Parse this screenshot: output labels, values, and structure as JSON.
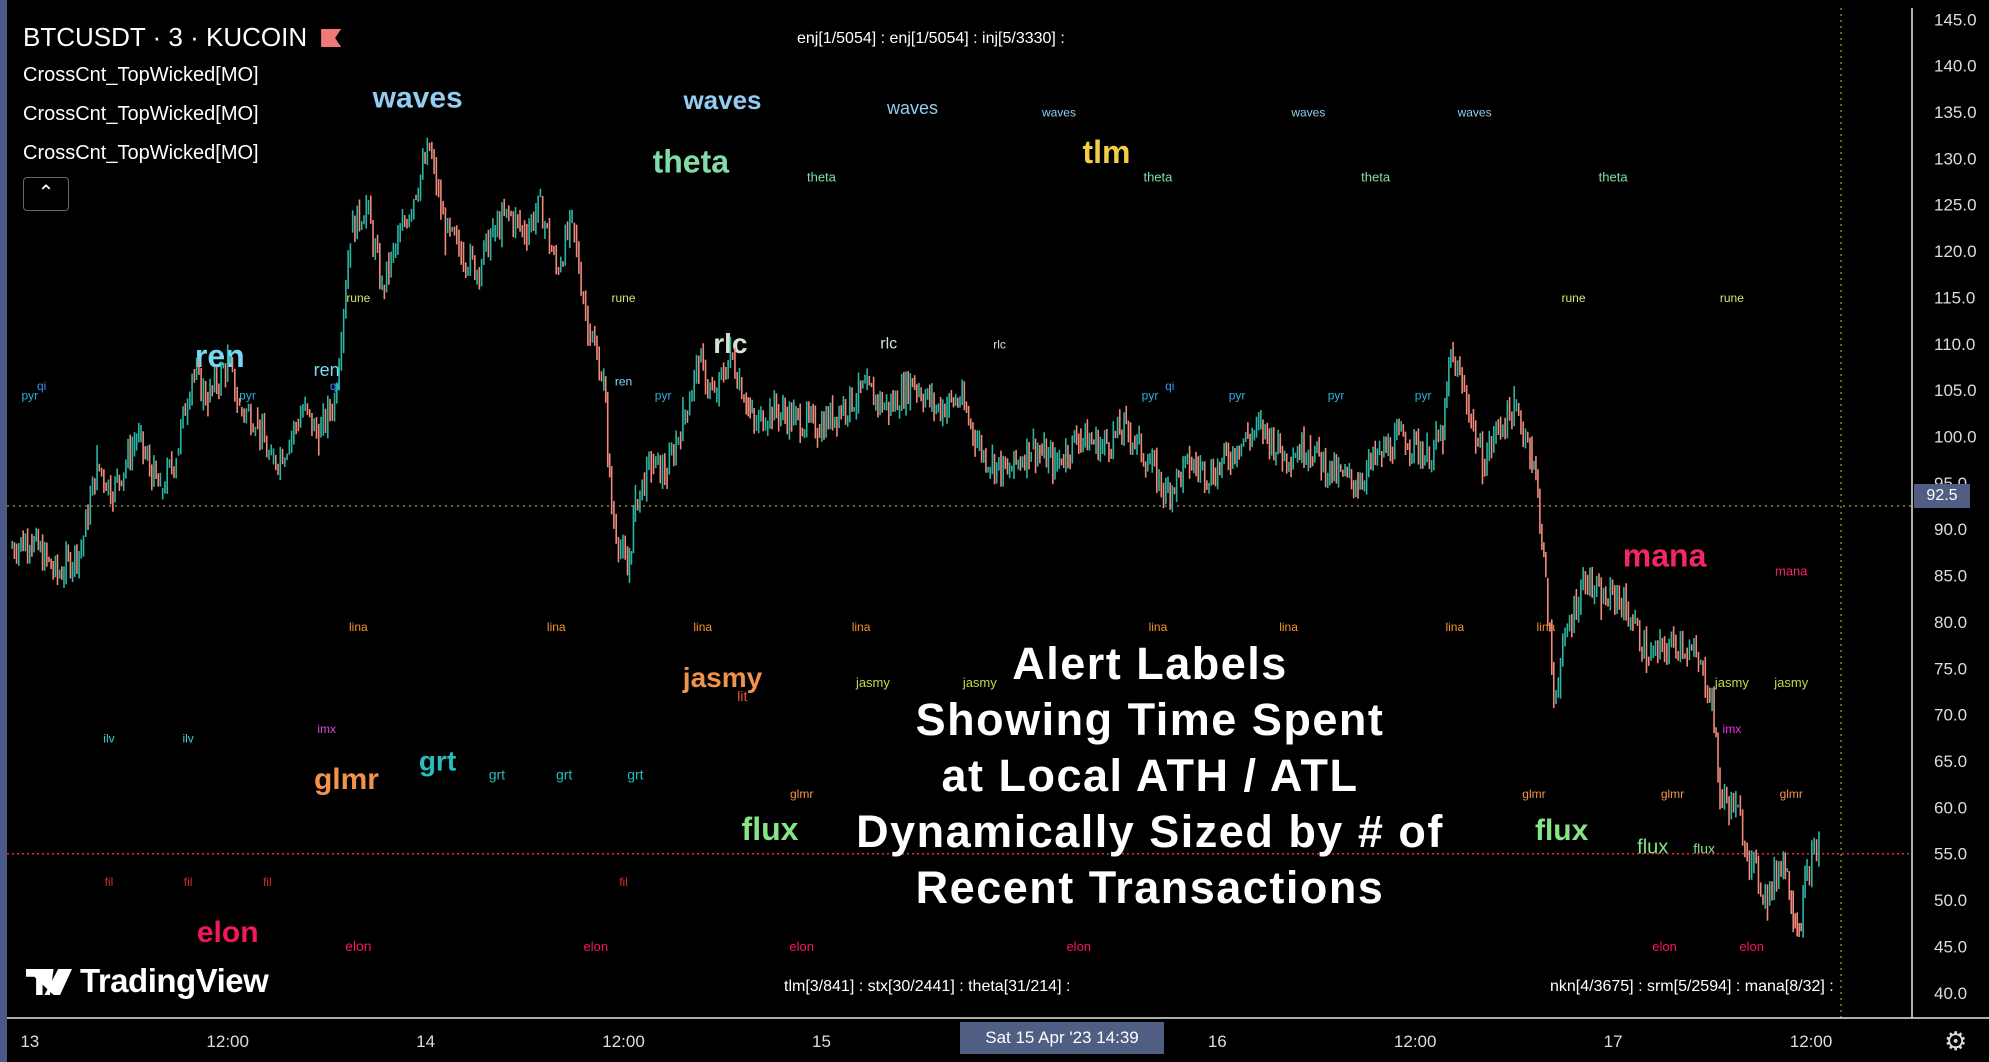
{
  "header": {
    "symbol": "BTCUSDT · 3 · KUCOIN",
    "indicators": [
      "CrossCnt_TopWicked[MO]",
      "CrossCnt_TopWicked[MO]",
      "CrossCnt_TopWicked[MO]"
    ],
    "collapse_icon": "chevron-up-icon",
    "top_status": "enj[1/5054] : enj[1/5054] : inj[5/3330] :",
    "bottom_status_left": "tlm[3/841] : stx[30/2441] : theta[31/214] :",
    "bottom_status_right": "nkn[4/3675] : srm[5/2594] : mana[8/32] :"
  },
  "brand": {
    "logo_text": "TradingView",
    "logo_icon": "tradingview-logo-icon"
  },
  "headline": [
    "Alert Labels",
    "Showing Time Spent",
    "at Local ATH / ATL",
    "Dynamically Sized by # of",
    "Recent Transactions"
  ],
  "crosshair": {
    "time_label": "Sat 15 Apr '23   14:39",
    "price_label": "92.5",
    "price": 92.5,
    "time": 13.6
  },
  "settings_icon": "gear-icon",
  "colors": {
    "bg": "#000000",
    "border": "#4a5a86",
    "up": "#2ab5a3",
    "down": "#f08a7a",
    "redline": "#e0302a"
  },
  "chart_data": {
    "type": "candlestick",
    "x_ticks": [
      {
        "label": "13",
        "x": 0.05
      },
      {
        "label": "12:00",
        "x": 0.55
      },
      {
        "label": "14",
        "x": 1.05
      },
      {
        "label": "12:00",
        "x": 1.55
      },
      {
        "label": "15",
        "x": 2.05
      },
      {
        "label": "16",
        "x": 3.05
      },
      {
        "label": "12:00",
        "x": 3.55
      },
      {
        "label": "17",
        "x": 4.05
      },
      {
        "label": "12:00",
        "x": 4.55
      }
    ],
    "y_ticks": [
      40,
      45,
      50,
      55,
      60,
      65,
      70,
      75,
      80,
      85,
      90,
      95,
      100,
      105,
      110,
      115,
      120,
      125,
      130,
      135,
      140,
      145
    ],
    "ylim": [
      37.5,
      146
    ],
    "xlim": [
      0,
      4.8
    ],
    "red_price_line": 55.0,
    "price_path": [
      [
        0.0,
        88
      ],
      [
        0.05,
        89
      ],
      [
        0.12,
        85
      ],
      [
        0.18,
        88
      ],
      [
        0.22,
        97
      ],
      [
        0.26,
        94
      ],
      [
        0.32,
        100
      ],
      [
        0.38,
        94
      ],
      [
        0.42,
        98
      ],
      [
        0.46,
        107
      ],
      [
        0.5,
        104
      ],
      [
        0.55,
        108
      ],
      [
        0.58,
        103
      ],
      [
        0.62,
        102
      ],
      [
        0.66,
        97
      ],
      [
        0.7,
        99
      ],
      [
        0.74,
        103
      ],
      [
        0.78,
        100
      ],
      [
        0.82,
        104
      ],
      [
        0.86,
        122
      ],
      [
        0.9,
        125
      ],
      [
        0.94,
        116
      ],
      [
        0.98,
        121
      ],
      [
        1.02,
        126
      ],
      [
        1.06,
        131
      ],
      [
        1.1,
        122
      ],
      [
        1.14,
        120
      ],
      [
        1.18,
        118
      ],
      [
        1.22,
        122
      ],
      [
        1.26,
        124
      ],
      [
        1.3,
        122
      ],
      [
        1.34,
        125
      ],
      [
        1.38,
        118
      ],
      [
        1.42,
        123
      ],
      [
        1.46,
        112
      ],
      [
        1.5,
        106
      ],
      [
        1.52,
        92
      ],
      [
        1.56,
        85
      ],
      [
        1.58,
        93
      ],
      [
        1.62,
        97
      ],
      [
        1.66,
        96
      ],
      [
        1.7,
        102
      ],
      [
        1.74,
        108
      ],
      [
        1.78,
        104
      ],
      [
        1.82,
        109
      ],
      [
        1.86,
        104
      ],
      [
        1.88,
        101
      ],
      [
        1.92,
        103
      ],
      [
        1.98,
        102
      ],
      [
        2.04,
        101
      ],
      [
        2.1,
        103
      ],
      [
        2.16,
        105
      ],
      [
        2.22,
        103
      ],
      [
        2.28,
        106
      ],
      [
        2.34,
        103
      ],
      [
        2.4,
        104
      ],
      [
        2.46,
        98
      ],
      [
        2.52,
        96
      ],
      [
        2.58,
        99
      ],
      [
        2.64,
        97
      ],
      [
        2.7,
        100
      ],
      [
        2.76,
        99
      ],
      [
        2.82,
        101
      ],
      [
        2.88,
        97
      ],
      [
        2.92,
        94
      ],
      [
        2.98,
        97
      ],
      [
        3.04,
        96
      ],
      [
        3.1,
        99
      ],
      [
        3.16,
        101
      ],
      [
        3.22,
        98
      ],
      [
        3.28,
        99
      ],
      [
        3.34,
        96
      ],
      [
        3.4,
        95
      ],
      [
        3.46,
        98
      ],
      [
        3.52,
        100
      ],
      [
        3.58,
        98
      ],
      [
        3.62,
        100
      ],
      [
        3.64,
        109
      ],
      [
        3.68,
        104
      ],
      [
        3.72,
        97
      ],
      [
        3.76,
        101
      ],
      [
        3.8,
        103
      ],
      [
        3.84,
        99
      ],
      [
        3.86,
        94
      ],
      [
        3.88,
        84
      ],
      [
        3.9,
        72
      ],
      [
        3.94,
        80
      ],
      [
        3.98,
        85
      ],
      [
        4.02,
        82
      ],
      [
        4.06,
        83
      ],
      [
        4.1,
        80
      ],
      [
        4.14,
        76
      ],
      [
        4.18,
        77
      ],
      [
        4.22,
        78
      ],
      [
        4.26,
        76
      ],
      [
        4.3,
        72
      ],
      [
        4.32,
        61
      ],
      [
        4.36,
        60
      ],
      [
        4.4,
        54
      ],
      [
        4.44,
        50
      ],
      [
        4.48,
        55
      ],
      [
        4.5,
        50
      ],
      [
        4.52,
        47
      ],
      [
        4.54,
        53
      ],
      [
        4.57,
        56
      ]
    ],
    "labels": [
      {
        "text": "waves",
        "x": 1.03,
        "y": 135.5,
        "size": 30,
        "color": "#9ad8ff"
      },
      {
        "text": "waves",
        "x": 1.8,
        "y": 135.3,
        "size": 26,
        "color": "#9ad8ff"
      },
      {
        "text": "waves",
        "x": 2.28,
        "y": 134.8,
        "size": 18,
        "color": "#9ad8ff"
      },
      {
        "text": "waves",
        "x": 2.65,
        "y": 134.5,
        "size": 12,
        "color": "#9ad8ff"
      },
      {
        "text": "waves",
        "x": 3.28,
        "y": 134.5,
        "size": 12,
        "color": "#9ad8ff"
      },
      {
        "text": "waves",
        "x": 3.7,
        "y": 134.5,
        "size": 12,
        "color": "#9ad8ff"
      },
      {
        "text": "theta",
        "x": 1.72,
        "y": 128.5,
        "size": 32,
        "color": "#8ae8b0"
      },
      {
        "text": "theta",
        "x": 2.05,
        "y": 127.5,
        "size": 13,
        "color": "#8ae8b0"
      },
      {
        "text": "theta",
        "x": 2.9,
        "y": 127.5,
        "size": 13,
        "color": "#8ae8b0"
      },
      {
        "text": "theta",
        "x": 3.45,
        "y": 127.5,
        "size": 13,
        "color": "#8ae8b0"
      },
      {
        "text": "theta",
        "x": 4.05,
        "y": 127.5,
        "size": 13,
        "color": "#8ae8b0"
      },
      {
        "text": "tlm",
        "x": 2.77,
        "y": 129.5,
        "size": 32,
        "color": "#ffd84a"
      },
      {
        "text": "rune",
        "x": 0.88,
        "y": 114.5,
        "size": 12,
        "color": "#e8ee7a"
      },
      {
        "text": "rune",
        "x": 1.55,
        "y": 114.5,
        "size": 12,
        "color": "#e8ee7a"
      },
      {
        "text": "rune",
        "x": 3.95,
        "y": 114.5,
        "size": 12,
        "color": "#e8ee7a"
      },
      {
        "text": "rune",
        "x": 4.35,
        "y": 114.5,
        "size": 12,
        "color": "#e8ee7a"
      },
      {
        "text": "ren",
        "x": 0.53,
        "y": 107.5,
        "size": 32,
        "color": "#7fe6ff"
      },
      {
        "text": "ren",
        "x": 0.8,
        "y": 106.5,
        "size": 18,
        "color": "#7fe6ff"
      },
      {
        "text": "ren",
        "x": 1.55,
        "y": 105.5,
        "size": 12,
        "color": "#7fe6ff"
      },
      {
        "text": "rlc",
        "x": 1.82,
        "y": 109,
        "size": 28,
        "color": "#e0f0e0"
      },
      {
        "text": "rlc",
        "x": 2.22,
        "y": 109.5,
        "size": 16,
        "color": "#e0f0e0"
      },
      {
        "text": "rlc",
        "x": 2.5,
        "y": 109.5,
        "size": 12,
        "color": "#e0f0e0"
      },
      {
        "text": "pyr",
        "x": 0.05,
        "y": 104,
        "size": 12,
        "color": "#32b8f0"
      },
      {
        "text": "pyr",
        "x": 0.6,
        "y": 104,
        "size": 12,
        "color": "#32b8f0"
      },
      {
        "text": "pyr",
        "x": 1.65,
        "y": 104,
        "size": 12,
        "color": "#32b8f0"
      },
      {
        "text": "pyr",
        "x": 2.88,
        "y": 104,
        "size": 12,
        "color": "#32b8f0"
      },
      {
        "text": "pyr",
        "x": 3.1,
        "y": 104,
        "size": 12,
        "color": "#32b8f0"
      },
      {
        "text": "pyr",
        "x": 3.35,
        "y": 104,
        "size": 12,
        "color": "#32b8f0"
      },
      {
        "text": "pyr",
        "x": 3.57,
        "y": 104,
        "size": 12,
        "color": "#32b8f0"
      },
      {
        "text": "qi",
        "x": 0.08,
        "y": 105,
        "size": 12,
        "color": "#32a0ff"
      },
      {
        "text": "qi",
        "x": 2.93,
        "y": 105,
        "size": 12,
        "color": "#32a0ff"
      },
      {
        "text": "qi",
        "x": 0.82,
        "y": 105,
        "size": 12,
        "color": "#32a0ff"
      },
      {
        "text": "mana",
        "x": 4.18,
        "y": 86,
        "size": 32,
        "color": "#ff2a6a"
      },
      {
        "text": "mana",
        "x": 4.5,
        "y": 85,
        "size": 13,
        "color": "#ff2a6a"
      },
      {
        "text": "lina",
        "x": 0.88,
        "y": 79,
        "size": 12,
        "color": "#ff9a30"
      },
      {
        "text": "lina",
        "x": 1.38,
        "y": 79,
        "size": 12,
        "color": "#ff9a30"
      },
      {
        "text": "lina",
        "x": 1.75,
        "y": 79,
        "size": 12,
        "color": "#ff9a30"
      },
      {
        "text": "lina",
        "x": 2.15,
        "y": 79,
        "size": 12,
        "color": "#ff9a30"
      },
      {
        "text": "lina",
        "x": 2.9,
        "y": 79,
        "size": 12,
        "color": "#ff9a30"
      },
      {
        "text": "lina",
        "x": 3.23,
        "y": 79,
        "size": 12,
        "color": "#ff9a30"
      },
      {
        "text": "lina",
        "x": 3.65,
        "y": 79,
        "size": 12,
        "color": "#ff9a30"
      },
      {
        "text": "lina",
        "x": 3.88,
        "y": 79,
        "size": 12,
        "color": "#ff9a30"
      },
      {
        "text": "jasmy",
        "x": 1.8,
        "y": 73,
        "size": 28,
        "color": "#ff9a52"
      },
      {
        "text": "jasmy",
        "x": 2.18,
        "y": 73,
        "size": 13,
        "color": "#c8e64a"
      },
      {
        "text": "jasmy",
        "x": 2.45,
        "y": 73,
        "size": 13,
        "color": "#c8e64a"
      },
      {
        "text": "jasmy",
        "x": 4.35,
        "y": 73,
        "size": 13,
        "color": "#c8e64a"
      },
      {
        "text": "jasmy",
        "x": 4.5,
        "y": 73,
        "size": 13,
        "color": "#c8e64a"
      },
      {
        "text": "lit",
        "x": 1.85,
        "y": 71.5,
        "size": 14,
        "color": "#ff5a40"
      },
      {
        "text": "ilv",
        "x": 0.25,
        "y": 67,
        "size": 12,
        "color": "#4ad8e8"
      },
      {
        "text": "ilv",
        "x": 0.45,
        "y": 67,
        "size": 12,
        "color": "#4ad8e8"
      },
      {
        "text": "imx",
        "x": 0.8,
        "y": 68,
        "size": 12,
        "color": "#e050e0"
      },
      {
        "text": "imx",
        "x": 4.35,
        "y": 68,
        "size": 12,
        "color": "#ff30ff"
      },
      {
        "text": "grt",
        "x": 1.08,
        "y": 64,
        "size": 28,
        "color": "#2ac8c8"
      },
      {
        "text": "grt",
        "x": 1.23,
        "y": 63,
        "size": 14,
        "color": "#2ac8c8"
      },
      {
        "text": "grt",
        "x": 1.4,
        "y": 63,
        "size": 14,
        "color": "#2ac8c8"
      },
      {
        "text": "grt",
        "x": 1.58,
        "y": 63,
        "size": 14,
        "color": "#2ac8c8"
      },
      {
        "text": "glmr",
        "x": 0.85,
        "y": 62,
        "size": 30,
        "color": "#ff9a52"
      },
      {
        "text": "glmr",
        "x": 2.0,
        "y": 61,
        "size": 12,
        "color": "#ff9a52"
      },
      {
        "text": "glmr",
        "x": 3.85,
        "y": 61,
        "size": 12,
        "color": "#ff9a52"
      },
      {
        "text": "glmr",
        "x": 4.2,
        "y": 61,
        "size": 12,
        "color": "#ff9a52"
      },
      {
        "text": "glmr",
        "x": 4.5,
        "y": 61,
        "size": 12,
        "color": "#ff9a52"
      },
      {
        "text": "flux",
        "x": 1.92,
        "y": 56.5,
        "size": 32,
        "color": "#8ef08e"
      },
      {
        "text": "flux",
        "x": 3.92,
        "y": 56.5,
        "size": 30,
        "color": "#8ef08e"
      },
      {
        "text": "flux",
        "x": 4.15,
        "y": 55,
        "size": 20,
        "color": "#8ef08e"
      },
      {
        "text": "flux",
        "x": 4.28,
        "y": 55,
        "size": 14,
        "color": "#8ef08e"
      },
      {
        "text": "fil",
        "x": 0.25,
        "y": 51.5,
        "size": 12,
        "color": "#e0302a"
      },
      {
        "text": "fil",
        "x": 0.45,
        "y": 51.5,
        "size": 12,
        "color": "#e0302a"
      },
      {
        "text": "fil",
        "x": 0.65,
        "y": 51.5,
        "size": 12,
        "color": "#e0302a"
      },
      {
        "text": "fil",
        "x": 1.55,
        "y": 51.5,
        "size": 12,
        "color": "#e0302a"
      },
      {
        "text": "elon",
        "x": 0.55,
        "y": 45.5,
        "size": 30,
        "color": "#ff1a60"
      },
      {
        "text": "elon",
        "x": 0.88,
        "y": 44.5,
        "size": 14,
        "color": "#ff1a60"
      },
      {
        "text": "elon",
        "x": 1.48,
        "y": 44.5,
        "size": 13,
        "color": "#ff1a60"
      },
      {
        "text": "elon",
        "x": 2.0,
        "y": 44.5,
        "size": 13,
        "color": "#ff1a60"
      },
      {
        "text": "elon",
        "x": 2.7,
        "y": 44.5,
        "size": 13,
        "color": "#ff1a60"
      },
      {
        "text": "elon",
        "x": 4.18,
        "y": 44.5,
        "size": 13,
        "color": "#ff1a60"
      },
      {
        "text": "elon",
        "x": 4.4,
        "y": 44.5,
        "size": 13,
        "color": "#ff1a60"
      }
    ]
  }
}
